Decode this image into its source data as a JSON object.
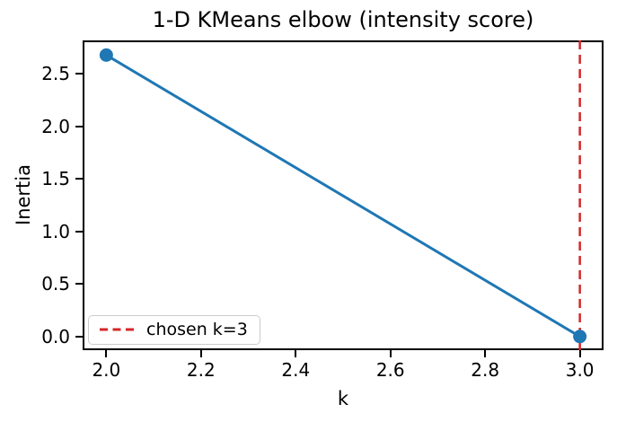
{
  "chart_data": {
    "type": "line",
    "title": "1-D KMeans elbow (intensity score)",
    "xlabel": "k",
    "ylabel": "Inertia",
    "x": [
      2.0,
      3.0
    ],
    "y": [
      2.68,
      0.0
    ],
    "line_color": "#1f77b4",
    "marker": "circle",
    "marker_size": 7.5,
    "line_width": 3,
    "xticks": [
      2.0,
      2.2,
      2.4,
      2.6,
      2.8,
      3.0
    ],
    "xtick_labels": [
      "2.0",
      "2.2",
      "2.4",
      "2.6",
      "2.8",
      "3.0"
    ],
    "yticks": [
      0.0,
      0.5,
      1.0,
      1.5,
      2.0,
      2.5
    ],
    "ytick_labels": [
      "0.0",
      "0.5",
      "1.0",
      "1.5",
      "2.0",
      "2.5"
    ],
    "xlim": [
      1.95,
      3.05
    ],
    "ylim": [
      -0.13,
      2.82
    ],
    "grid": false,
    "background": "#ffffff",
    "axis_color": "#000000",
    "vline": {
      "x": 3.0,
      "color": "#d62728",
      "linestyle": "dashed",
      "line_width": 2.5
    },
    "legend": {
      "position": "lower left",
      "entries": [
        {
          "label": "chosen k=3",
          "color": "#d62728",
          "linestyle": "dashed"
        }
      ]
    }
  }
}
